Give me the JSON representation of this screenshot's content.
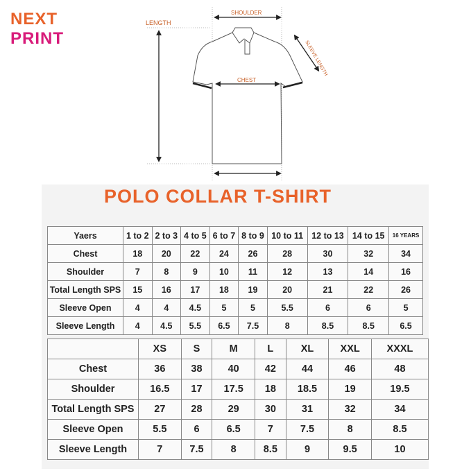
{
  "brand": {
    "line1": "NEXT",
    "line2": "PRINT",
    "colors": {
      "orange": "#e8622a",
      "magenta": "#d81b7a"
    }
  },
  "diagram": {
    "labels": {
      "length": "LENGTH",
      "shoulder": "SHOULDER",
      "chest": "CHEST",
      "sleeve_length": "SLEEVE LENGTH"
    }
  },
  "title": "POLO COLLAR T-SHIRT",
  "kids_table": {
    "header": [
      "Yaers",
      "1 to 2",
      "2 to 3",
      "4 to 5",
      "6 to 7",
      "8 to 9",
      "10 to 11",
      "12 to 13",
      "14 to 15",
      "16 YEARS"
    ],
    "rows": [
      [
        "Chest",
        "18",
        "20",
        "22",
        "24",
        "26",
        "28",
        "30",
        "32",
        "34"
      ],
      [
        "Shoulder",
        "7",
        "8",
        "9",
        "10",
        "11",
        "12",
        "13",
        "14",
        "16"
      ],
      [
        "Total Length SPS",
        "15",
        "16",
        "17",
        "18",
        "19",
        "20",
        "21",
        "22",
        "26"
      ],
      [
        "Sleeve Open",
        "4",
        "4",
        "4.5",
        "5",
        "5",
        "5.5",
        "6",
        "6",
        "5"
      ],
      [
        "Sleeve Length",
        "4",
        "4.5",
        "5.5",
        "6.5",
        "7.5",
        "8",
        "8.5",
        "8.5",
        "6.5"
      ]
    ]
  },
  "adult_table": {
    "header": [
      "",
      "XS",
      "S",
      "M",
      "L",
      "XL",
      "XXL",
      "XXXL"
    ],
    "rows": [
      [
        "Chest",
        "36",
        "38",
        "40",
        "42",
        "44",
        "46",
        "48"
      ],
      [
        "Shoulder",
        "16.5",
        "17",
        "17.5",
        "18",
        "18.5",
        "19",
        "19.5"
      ],
      [
        "Total Length SPS",
        "27",
        "28",
        "29",
        "30",
        "31",
        "32",
        "34"
      ],
      [
        "Sleeve Open",
        "5.5",
        "6",
        "6.5",
        "7",
        "7.5",
        "8",
        "8.5"
      ],
      [
        "Sleeve Length",
        "7",
        "7.5",
        "8",
        "8.5",
        "9",
        "9.5",
        "10"
      ]
    ]
  }
}
